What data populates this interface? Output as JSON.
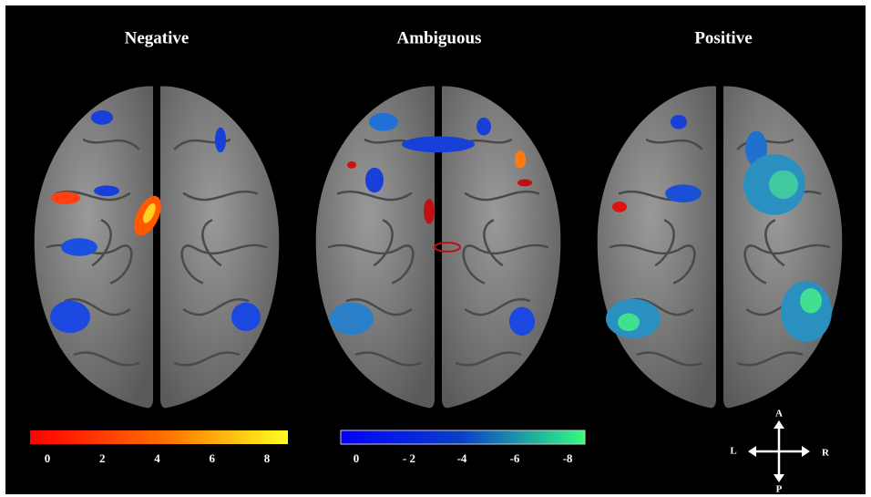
{
  "panels": [
    {
      "title": "Negative"
    },
    {
      "title": "Ambiguous"
    },
    {
      "title": "Positive"
    }
  ],
  "colorbars": [
    {
      "ticks": [
        "0",
        "2",
        "4",
        "6",
        "8"
      ]
    },
    {
      "ticks": [
        "0",
        "- 2",
        "-4",
        "-6",
        "-8"
      ]
    }
  ],
  "orientation": {
    "anterior": "A",
    "posterior": "P",
    "left": "L",
    "right": "R"
  }
}
